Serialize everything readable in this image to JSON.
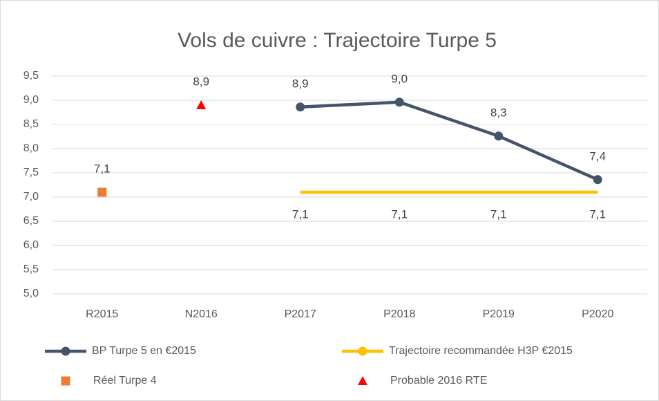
{
  "chart_data": {
    "type": "line",
    "title": "Vols de cuivre : Trajectoire Turpe 5",
    "categories": [
      "R2015",
      "N2016",
      "P2017",
      "P2018",
      "P2019",
      "P2020"
    ],
    "ylim": [
      5,
      9.5
    ],
    "yticks": [
      {
        "value": 5,
        "label": "5,0"
      },
      {
        "value": 5.5,
        "label": "5,5"
      },
      {
        "value": 6,
        "label": "6,0"
      },
      {
        "value": 6.5,
        "label": "6,5"
      },
      {
        "value": 7,
        "label": "7,0"
      },
      {
        "value": 7.5,
        "label": "7,5"
      },
      {
        "value": 8,
        "label": "8,0"
      },
      {
        "value": 8.5,
        "label": "8,5"
      },
      {
        "value": 9,
        "label": "9,0"
      },
      {
        "value": 9.5,
        "label": "9,5"
      }
    ],
    "grid": true,
    "legend": "bottom",
    "series": [
      {
        "name": "BP Turpe 5 en €2015",
        "color": "#44546a",
        "marker": "circle",
        "line": true,
        "label_position": "above",
        "values": [
          null,
          null,
          8.86,
          8.96,
          8.26,
          7.36
        ],
        "value_labels": [
          null,
          null,
          "8,9",
          "9,0",
          "8,3",
          "7,4"
        ]
      },
      {
        "name": "Trajectoire recommandée H3P €2015",
        "color": "#ffc000",
        "marker": "none",
        "line": true,
        "label_position": "below",
        "values": [
          null,
          null,
          7.1,
          7.1,
          7.1,
          7.1
        ],
        "value_labels": [
          null,
          null,
          "7,1",
          "7,1",
          "7,1",
          "7,1"
        ]
      },
      {
        "name": "Réel Turpe 4",
        "color": "#ed7d31",
        "marker": "square",
        "line": false,
        "label_position": "above",
        "values": [
          7.1,
          null,
          null,
          null,
          null,
          null
        ],
        "value_labels": [
          "7,1",
          null,
          null,
          null,
          null,
          null
        ]
      },
      {
        "name": "Probable 2016 RTE",
        "color": "#ff0000",
        "marker": "triangle",
        "line": false,
        "label_position": "above",
        "values": [
          null,
          8.9,
          null,
          null,
          null,
          null
        ],
        "value_labels": [
          null,
          "8,9",
          null,
          null,
          null,
          null
        ]
      }
    ]
  }
}
